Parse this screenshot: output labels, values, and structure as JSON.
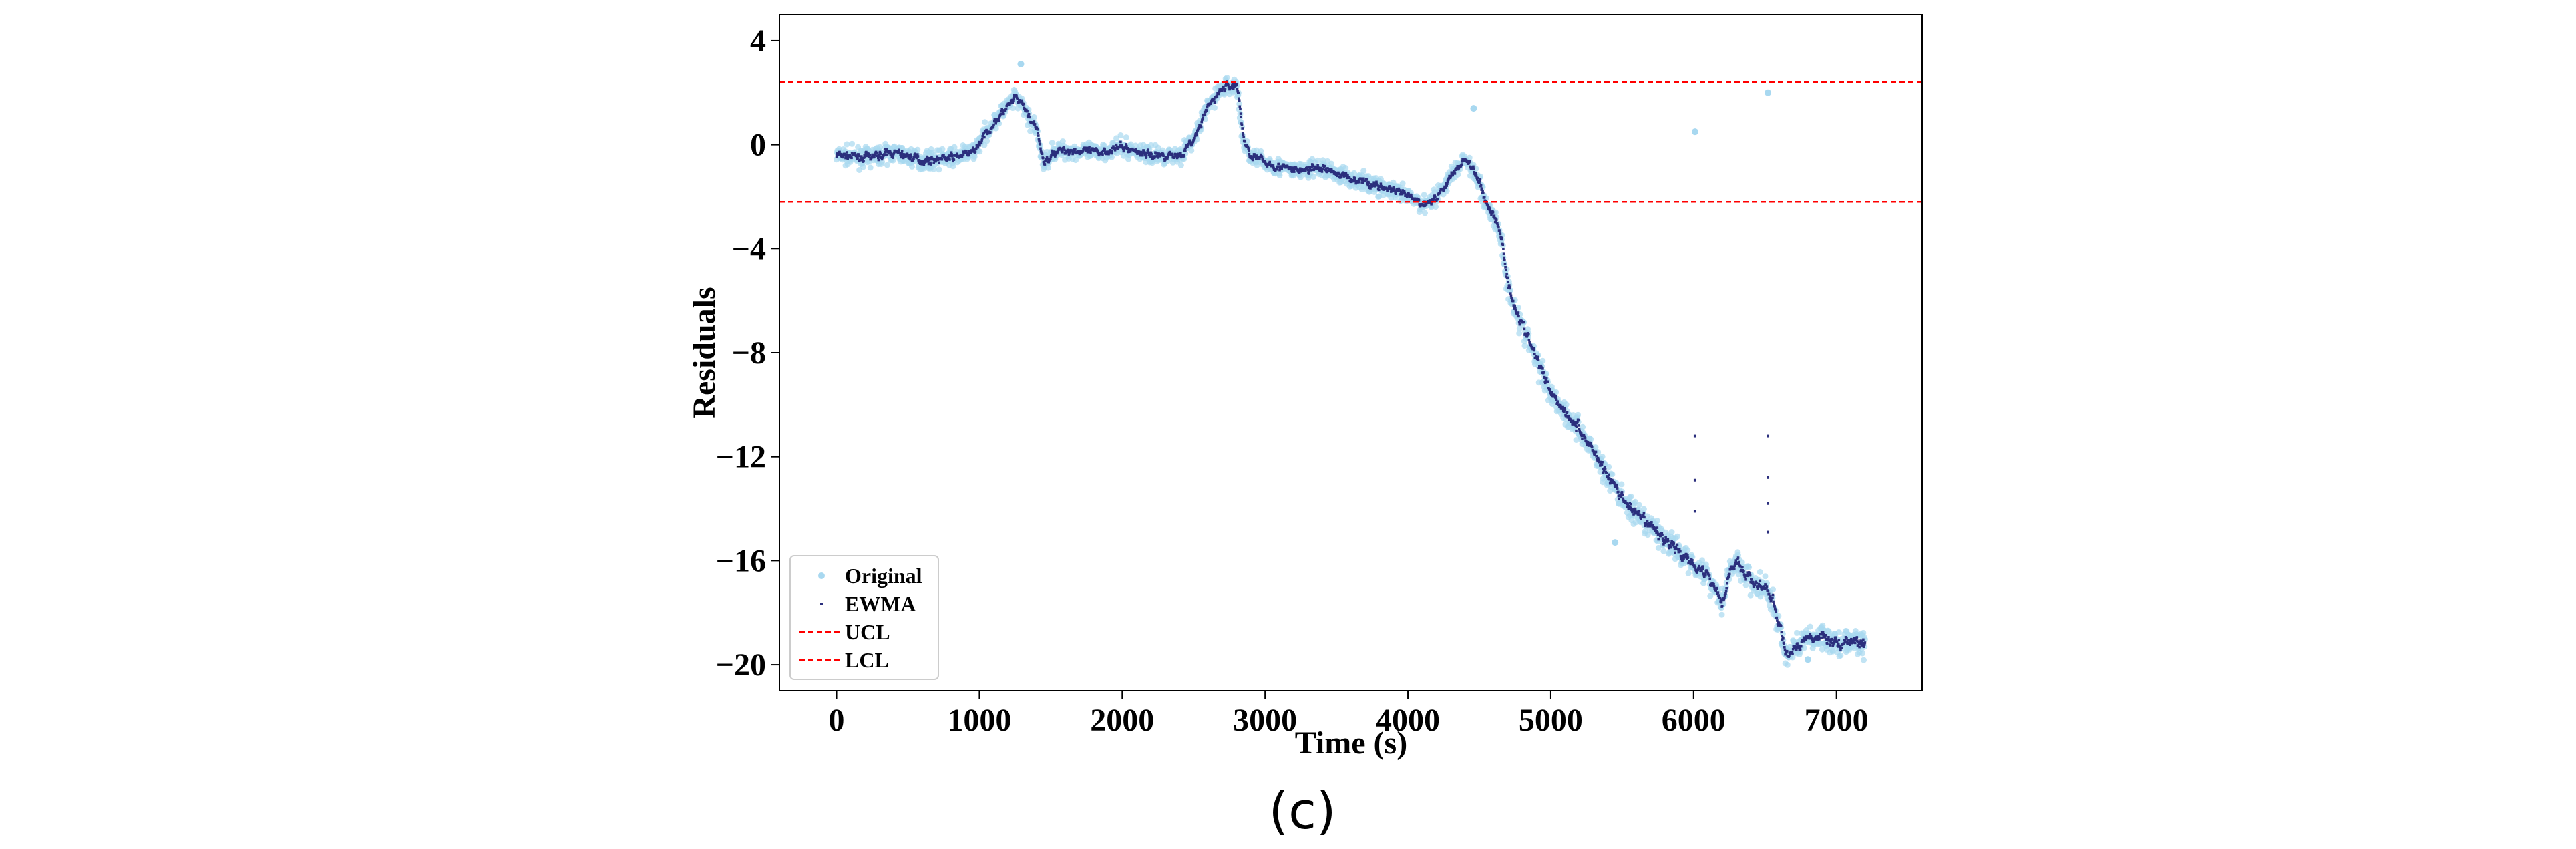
{
  "chart_data": {
    "type": "scatter",
    "xlabel": "Time (s)",
    "ylabel": "Residuals",
    "xlim": [
      -400,
      7600
    ],
    "ylim": [
      -21,
      5
    ],
    "xticks": [
      0,
      1000,
      2000,
      3000,
      4000,
      5000,
      6000,
      7000
    ],
    "yticks": [
      4,
      0,
      -4,
      -8,
      -12,
      -16,
      -20
    ],
    "ytick_labels": [
      "4",
      "0",
      "−4",
      "−8",
      "−12",
      "−16",
      "−20"
    ],
    "grid": false,
    "legend_position": "lower-left",
    "ucl": 2.4,
    "lcl": -2.2,
    "anchors_x": [
      0,
      200,
      400,
      600,
      800,
      950,
      1050,
      1150,
      1250,
      1300,
      1400,
      1450,
      1500,
      1600,
      1800,
      2000,
      2200,
      2400,
      2500,
      2600,
      2700,
      2800,
      2850,
      2900,
      3000,
      3200,
      3400,
      3600,
      3800,
      4000,
      4100,
      4200,
      4300,
      4400,
      4500,
      4550,
      4600,
      4650,
      4700,
      4800,
      4900,
      5000,
      5100,
      5200,
      5300,
      5400,
      5500,
      5600,
      5700,
      5800,
      5900,
      6000,
      6100,
      6200,
      6250,
      6300,
      6400,
      6500,
      6550,
      6600,
      6650,
      6700,
      6800,
      6900,
      7000,
      7100,
      7200
    ],
    "anchors_y": [
      -0.4,
      -0.5,
      -0.3,
      -0.6,
      -0.5,
      -0.3,
      0.5,
      1.2,
      1.8,
      1.5,
      0.5,
      -0.8,
      -0.3,
      -0.2,
      -0.3,
      -0.1,
      -0.4,
      -0.4,
      0.2,
      1.5,
      2.2,
      2.3,
      0.0,
      -0.4,
      -0.7,
      -1.0,
      -0.9,
      -1.3,
      -1.6,
      -2.0,
      -2.3,
      -2.0,
      -1.2,
      -0.5,
      -1.5,
      -2.3,
      -2.8,
      -3.5,
      -5.5,
      -7.0,
      -8.3,
      -9.5,
      -10.3,
      -11.0,
      -11.8,
      -12.8,
      -13.6,
      -14.3,
      -14.7,
      -15.2,
      -15.7,
      -16.1,
      -16.6,
      -17.6,
      -16.3,
      -16.1,
      -16.8,
      -17.1,
      -17.6,
      -18.6,
      -19.8,
      -19.3,
      -19.0,
      -18.9,
      -19.2,
      -19.1,
      -19.2
    ],
    "outliers": [
      {
        "x": 1290,
        "y": 3.1
      },
      {
        "x": 4460,
        "y": 1.4
      },
      {
        "x": 6010,
        "y": 0.5
      },
      {
        "x": 6520,
        "y": 2.0
      },
      {
        "x": 5450,
        "y": -15.3
      },
      {
        "x": 5400,
        "y": -13.0
      },
      {
        "x": 6800,
        "y": -19.8
      }
    ],
    "ewma_stragglers": [
      {
        "x": 6010,
        "y": -11.2
      },
      {
        "x": 6010,
        "y": -12.9
      },
      {
        "x": 6010,
        "y": -14.1
      },
      {
        "x": 6520,
        "y": -11.2
      },
      {
        "x": 6520,
        "y": -12.8
      },
      {
        "x": 6520,
        "y": -13.8
      },
      {
        "x": 6520,
        "y": -14.9
      }
    ],
    "series": [
      {
        "name": "Original",
        "kind": "scatter",
        "color": "#a8d8f0"
      },
      {
        "name": "EWMA",
        "kind": "scatter",
        "color": "#2b2f7d"
      },
      {
        "name": "UCL",
        "kind": "hline",
        "color": "#ff0000"
      },
      {
        "name": "LCL",
        "kind": "hline",
        "color": "#ff0000"
      }
    ]
  },
  "caption": "(c)"
}
